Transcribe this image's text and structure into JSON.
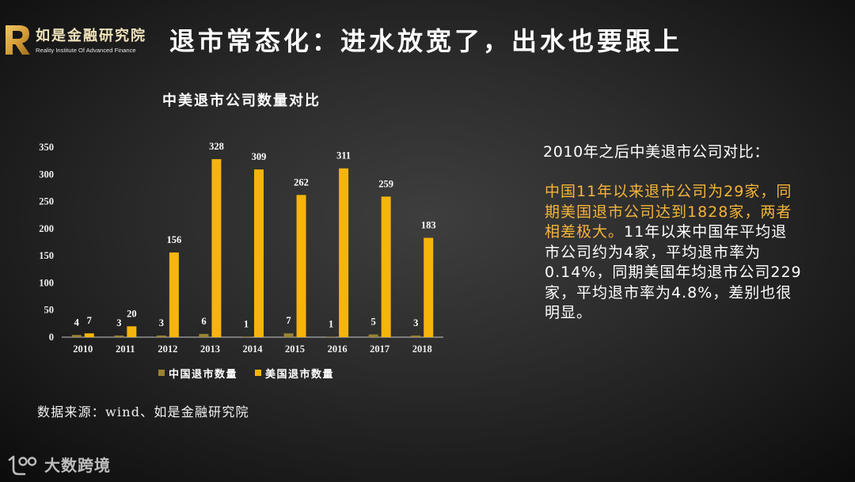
{
  "logo": {
    "name": "如是金融研究院",
    "english_name": "Reality Institute Of Advanced Finance",
    "icon": "r-letter-logo-icon"
  },
  "title": "退市常态化：进水放宽了，出水也要跟上",
  "chart_data": {
    "type": "bar",
    "title": "中美退市公司数量对比",
    "categories": [
      "2010",
      "2011",
      "2012",
      "2013",
      "2014",
      "2015",
      "2016",
      "2017",
      "2018"
    ],
    "series": [
      {
        "name": "中国退市数量",
        "values": [
          4,
          3,
          3,
          6,
          1,
          7,
          1,
          5,
          3
        ],
        "color": "#9b8334"
      },
      {
        "name": "美国退市数量",
        "values": [
          7,
          20,
          156,
          328,
          309,
          262,
          311,
          259,
          183
        ],
        "color": "#f6b50c"
      }
    ],
    "ylim": [
      0,
      350
    ],
    "yticks": [
      0,
      50,
      100,
      150,
      200,
      250,
      300,
      350
    ],
    "grid": false,
    "legend": "bottom",
    "data_labels": true
  },
  "source": "数据来源：wind、如是金融研究院",
  "summary": {
    "heading": "2010年之后中美退市公司对比：",
    "lines": [
      [
        {
          "text": "中国11年以来退市公司为29家，同",
          "highlight": true
        }
      ],
      [
        {
          "text": "期美国退市公司达到1828家，两者",
          "highlight": true
        }
      ],
      [
        {
          "text": "相差极大。",
          "highlight": true
        },
        {
          "text": "11年以来中国年平均退",
          "highlight": false
        }
      ],
      [
        {
          "text": "市公司约为4家，平均退市率为",
          "highlight": false
        }
      ],
      [
        {
          "text": "0.14%，同期美国年均退市公司229",
          "highlight": false
        }
      ],
      [
        {
          "text": "家，平均退市率为4.8%，差别也很",
          "highlight": false
        }
      ],
      [
        {
          "text": "明显。",
          "highlight": false
        }
      ]
    ]
  },
  "watermark": {
    "text": "大数跨境",
    "icon": "brand-logo-icon"
  },
  "colors": {
    "background": "#2c2c2c",
    "accent": "#f6b50c",
    "highlight_text": "#f4b43a",
    "text": "#ffffff",
    "logo_gold": "#d7a23e"
  }
}
